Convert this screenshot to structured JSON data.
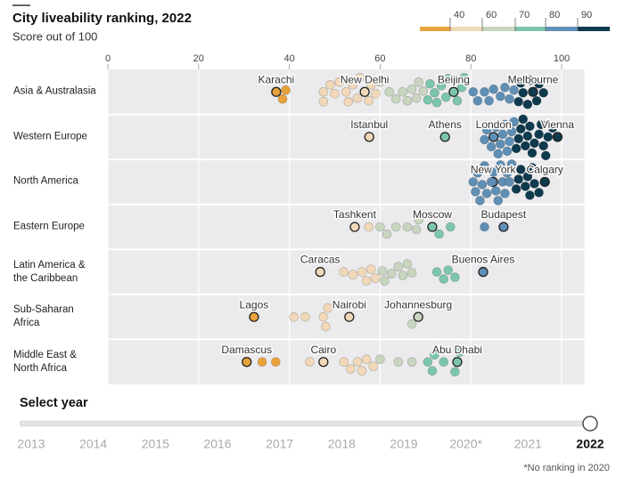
{
  "header": {
    "title": "City liveability ranking, 2022",
    "subtitle": "Score out of 100"
  },
  "chart_data": {
    "type": "beeswarm",
    "xlim": [
      0,
      105
    ],
    "xticks": [
      0,
      20,
      40,
      60,
      80,
      100
    ],
    "grid": true,
    "colorbar": {
      "ticks": [
        40,
        60,
        70,
        80,
        90
      ],
      "colors": [
        "#e8a23a",
        "#f0d8b8",
        "#c8d5bf",
        "#7cc5ad",
        "#5f8fb5",
        "#0e3a4e"
      ]
    },
    "series": [
      {
        "name": "Asia & Australasia",
        "highlights": [
          {
            "name": "Karachi",
            "value": 37.1
          },
          {
            "name": "New Delhi",
            "value": 56.6
          },
          {
            "name": "Beijing",
            "value": 76.2
          },
          {
            "name": "Melbourne",
            "value": 93.7
          }
        ],
        "values": [
          38.5,
          39.2,
          47.5,
          47.5,
          49,
          50,
          51,
          52.5,
          53,
          54,
          55,
          55.5,
          57.5,
          58,
          59,
          60,
          62,
          63.5,
          65,
          66,
          67,
          68,
          68.5,
          69.5,
          70.5,
          71,
          72,
          72.5,
          73.5,
          74.5,
          75,
          77,
          78,
          78.5,
          80.5,
          81.5,
          83,
          84,
          85,
          86.5,
          87.5,
          88.5,
          89.5,
          90.5,
          91,
          91.5,
          92.5,
          93,
          94.5,
          95,
          96
        ]
      },
      {
        "name": "Western Europe",
        "highlights": [
          {
            "name": "Istanbul",
            "value": 57.6
          },
          {
            "name": "Athens",
            "value": 74.3
          },
          {
            "name": "London",
            "value": 85
          },
          {
            "name": "Vienna",
            "value": 99.1
          }
        ],
        "values": [
          83,
          83.5,
          84.5,
          85.5,
          86,
          86.5,
          87,
          87.5,
          88,
          88.5,
          89,
          89.5,
          90,
          90.5,
          91,
          91.5,
          92,
          92.5,
          93,
          93.5,
          94,
          95,
          95.5,
          96,
          96.5,
          97,
          98
        ]
      },
      {
        "name": "North America",
        "highlights": [
          {
            "name": "New York",
            "value": 84.9
          },
          {
            "name": "Calgary",
            "value": 96.3
          }
        ],
        "values": [
          80.5,
          81,
          81.5,
          82,
          82.5,
          83,
          83.5,
          84.5,
          85,
          85.5,
          86,
          86.5,
          87,
          87.5,
          88,
          88.5,
          89,
          90,
          90.5,
          91,
          92,
          92.5,
          93,
          93.5,
          94,
          95
        ]
      },
      {
        "name": "Eastern Europe",
        "highlights": [
          {
            "name": "Tashkent",
            "value": 54.4
          },
          {
            "name": "Moscow",
            "value": 71.5
          },
          {
            "name": "Budapest",
            "value": 87.2
          }
        ],
        "values": [
          57.5,
          60,
          61.5,
          63.5,
          66,
          68,
          68.5,
          73,
          75.5,
          83
        ]
      },
      {
        "name": "Latin America &\nthe Caribbean",
        "highlights": [
          {
            "name": "Caracas",
            "value": 46.8
          },
          {
            "name": "Buenos Aires",
            "value": 82.7
          }
        ],
        "values": [
          52,
          54,
          56,
          57,
          58,
          59,
          60.5,
          61,
          62.5,
          64,
          65,
          66,
          67,
          72.5,
          74,
          75,
          76.5
        ]
      },
      {
        "name": "Sub-Saharan\nAfrica",
        "highlights": [
          {
            "name": "Lagos",
            "value": 32.2
          },
          {
            "name": "Nairobi",
            "value": 53.2
          },
          {
            "name": "Johannesburg",
            "value": 68.4
          }
        ],
        "values": [
          41,
          43.5,
          47.5,
          48,
          48.5,
          67
        ]
      },
      {
        "name": "Middle East &\nNorth Africa",
        "highlights": [
          {
            "name": "Damascus",
            "value": 30.6
          },
          {
            "name": "Cairo",
            "value": 47.5
          },
          {
            "name": "Abu Dhabi",
            "value": 77
          }
        ],
        "values": [
          34,
          37,
          44.5,
          52,
          53.5,
          55,
          56,
          57,
          58.5,
          60,
          64,
          67,
          70.5,
          71.5,
          72,
          74,
          76.5,
          77.5
        ]
      }
    ]
  },
  "slider": {
    "label": "Select year",
    "years": [
      "2013",
      "2014",
      "2015",
      "2016",
      "2017",
      "2018",
      "2019",
      "2020*",
      "2021",
      "2022"
    ],
    "selected": "2022"
  },
  "footnote": "*No ranking in 2020"
}
